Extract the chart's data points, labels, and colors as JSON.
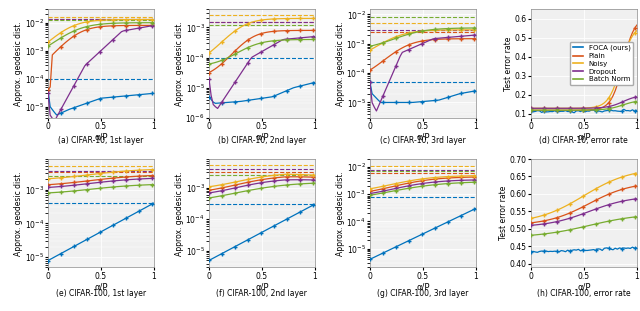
{
  "colors": {
    "FOCA": "#0072BD",
    "Plain": "#D95319",
    "Noisy": "#EDB120",
    "Dropout": "#7E2F8E",
    "BatchNorm": "#77AC30"
  },
  "legend_labels": [
    "FOCA (ours)",
    "Plain",
    "Noisy",
    "Dropout",
    "Batch Norm"
  ],
  "figsize": [
    6.4,
    3.11
  ],
  "dpi": 100,
  "subtitles": [
    "(a) CIFAR-10, 1st layer",
    "(b) CIFAR-10, 2nd layer",
    "(c) CIFAR-10, 3rd layer",
    "(d) CIFAR-10, error rate",
    "(e) CIFAR-100, 1st layer",
    "(f) CIFAR-100, 2nd layer",
    "(g) CIFAR-100, 3rd layer",
    "(h) CIFAR-100, error rate"
  ],
  "xlabel": "α/P",
  "ylabel_geo": "Approx. geodesic dist.",
  "ylabel_err": "Test error rate",
  "bg_color": "#F0F0F0"
}
